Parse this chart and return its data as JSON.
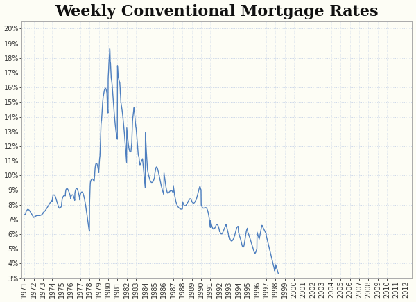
{
  "title": "Weekly Conventional Mortgage Rates",
  "title_fontsize": 16,
  "line_color": "#4E7FBF",
  "line_width": 1.0,
  "background_color": "#FDFDF5",
  "grid_color_h": "#C8D4E8",
  "grid_color_v": "#C8D4E8",
  "grid_linestyle": ":",
  "ylim": [
    3.0,
    20.5
  ],
  "yticks": [
    3,
    4,
    5,
    6,
    7,
    8,
    9,
    10,
    11,
    12,
    13,
    14,
    15,
    16,
    17,
    18,
    19,
    20
  ],
  "tick_fontsize": 7,
  "spine_color": "#AAAAAA",
  "xlim_left": 1970.7,
  "xlim_right": 2012.7,
  "rates": [
    7.33,
    7.33,
    7.33,
    7.33,
    7.33,
    7.33,
    7.33,
    7.44,
    7.46,
    7.53,
    7.55,
    7.56,
    7.59,
    7.61,
    7.64,
    7.65,
    7.66,
    7.67,
    7.68,
    7.69,
    7.68,
    7.68,
    7.67,
    7.67,
    7.66,
    7.65,
    7.64,
    7.62,
    7.61,
    7.59,
    7.58,
    7.56,
    7.54,
    7.52,
    7.5,
    7.48,
    7.46,
    7.44,
    7.42,
    7.4,
    7.37,
    7.35,
    7.33,
    7.3,
    7.28,
    7.26,
    7.23,
    7.21,
    7.19,
    7.17,
    7.15,
    7.13,
    7.13,
    7.14,
    7.15,
    7.16,
    7.17,
    7.17,
    7.18,
    7.19,
    7.2,
    7.21,
    7.21,
    7.22,
    7.23,
    7.24,
    7.24,
    7.25,
    7.25,
    7.25,
    7.26,
    7.26,
    7.26,
    7.26,
    7.26,
    7.26,
    7.26,
    7.26,
    7.26,
    7.26,
    7.26,
    7.26,
    7.26,
    7.26,
    7.26,
    7.26,
    7.26,
    7.27,
    7.27,
    7.27,
    7.28,
    7.28,
    7.29,
    7.29,
    7.3,
    7.31,
    7.32,
    7.33,
    7.34,
    7.35,
    7.36,
    7.37,
    7.38,
    7.4,
    7.46,
    7.47,
    7.49,
    7.5,
    7.51,
    7.52,
    7.53,
    7.54,
    7.55,
    7.56,
    7.57,
    7.58,
    7.6,
    7.62,
    7.64,
    7.66,
    7.68,
    7.7,
    7.72,
    7.73,
    7.74,
    7.76,
    7.78,
    7.8,
    7.82,
    7.84,
    7.86,
    7.88,
    7.9,
    7.92,
    7.94,
    7.96,
    7.98,
    8.0,
    8.02,
    8.04,
    8.06,
    8.08,
    8.1,
    8.12,
    8.14,
    8.16,
    8.18,
    8.2,
    8.22,
    8.24,
    8.26,
    8.26,
    8.26,
    8.25,
    8.24,
    8.23,
    8.38,
    8.48,
    8.55,
    8.6,
    8.63,
    8.65,
    8.66,
    8.67,
    8.67,
    8.67,
    8.67,
    8.67,
    8.66,
    8.65,
    8.63,
    8.61,
    8.58,
    8.55,
    8.51,
    8.47,
    8.43,
    8.39,
    8.35,
    8.31,
    8.27,
    8.23,
    8.19,
    8.15,
    8.11,
    8.07,
    8.03,
    7.99,
    7.95,
    7.91,
    7.87,
    7.84,
    7.82,
    7.8,
    7.78,
    7.77,
    7.76,
    7.76,
    7.76,
    7.77,
    7.78,
    7.79,
    7.8,
    7.82,
    7.84,
    7.86,
    7.88,
    7.9,
    8.1,
    8.2,
    8.3,
    8.38,
    8.43,
    8.47,
    8.5,
    8.52,
    8.55,
    8.57,
    8.59,
    8.61,
    8.62,
    8.63,
    8.64,
    8.64,
    8.64,
    8.64,
    8.63,
    8.62,
    8.6,
    8.75,
    8.89,
    8.97,
    9.02,
    9.05,
    9.07,
    9.08,
    9.09,
    9.1,
    9.1,
    9.1,
    9.09,
    9.08,
    9.06,
    9.04,
    9.02,
    8.99,
    8.96,
    8.93,
    8.9,
    8.87,
    8.84,
    8.81,
    8.77,
    8.73,
    8.69,
    8.64,
    8.59,
    8.53,
    8.47,
    8.4,
    8.55,
    8.58,
    8.62,
    8.64,
    8.65,
    8.66,
    8.67,
    8.68,
    8.68,
    8.68,
    8.67,
    8.66,
    8.64,
    8.62,
    8.59,
    8.56,
    8.52,
    8.48,
    8.44,
    8.39,
    8.34,
    8.3,
    8.78,
    8.86,
    8.92,
    8.97,
    9.01,
    9.04,
    9.07,
    9.09,
    9.1,
    9.11,
    9.11,
    9.1,
    9.09,
    9.07,
    9.05,
    9.02,
    8.99,
    8.95,
    8.91,
    8.87,
    8.82,
    8.77,
    8.72,
    8.66,
    8.6,
    8.53,
    8.46,
    8.39,
    8.32,
    8.65,
    8.69,
    8.73,
    8.76,
    8.79,
    8.81,
    8.83,
    8.85,
    8.86,
    8.87,
    8.87,
    8.87,
    8.86,
    8.85,
    8.83,
    8.81,
    8.79,
    8.76,
    8.72,
    8.68,
    8.64,
    8.59,
    8.54,
    8.49,
    8.43,
    8.37,
    8.31,
    8.24,
    8.17,
    8.1,
    8.03,
    7.95,
    7.87,
    7.79,
    7.71,
    7.63,
    7.54,
    7.45,
    7.36,
    7.27,
    7.18,
    7.09,
    7.0,
    6.9,
    6.8,
    6.7,
    6.62,
    6.54,
    6.46,
    6.38,
    6.31,
    6.26,
    6.2,
    8.04,
    8.45,
    8.97,
    9.2,
    9.45,
    9.55,
    9.58,
    9.63,
    9.66,
    9.69,
    9.71,
    9.73,
    9.74,
    9.75,
    9.76,
    9.76,
    9.76,
    9.75,
    9.74,
    9.73,
    9.71,
    9.69,
    9.67,
    9.64,
    9.61,
    9.58,
    9.64,
    9.83,
    10.05,
    10.25,
    10.4,
    10.52,
    10.62,
    10.69,
    10.74,
    10.78,
    10.81,
    10.82,
    10.83,
    10.82,
    10.81,
    10.79,
    10.76,
    10.72,
    10.68,
    10.63,
    10.57,
    10.51,
    10.44,
    10.36,
    10.28,
    10.19,
    10.38,
    10.53,
    10.78,
    11.01,
    11.14,
    11.24,
    11.32,
    11.58,
    12.01,
    12.34,
    12.71,
    13.09,
    13.46,
    13.6,
    13.72,
    13.77,
    13.93,
    14.14,
    14.33,
    14.55,
    14.73,
    14.99,
    15.08,
    15.23,
    15.38,
    15.49,
    15.49,
    15.56,
    15.65,
    15.71,
    15.77,
    15.82,
    15.86,
    15.89,
    15.92,
    15.94,
    15.95,
    15.95,
    15.94,
    15.92,
    15.89,
    15.85,
    15.8,
    15.74,
    15.67,
    15.65,
    15.24,
    14.95,
    14.76,
    14.59,
    14.42,
    14.26,
    16.63,
    16.82,
    17.06,
    17.38,
    17.64,
    17.83,
    18.01,
    18.18,
    18.45,
    18.63,
    18.51,
    17.88,
    17.52,
    17.66,
    17.38,
    17.0,
    16.81,
    16.64,
    16.57,
    16.5,
    16.4,
    16.3,
    16.2,
    16.04,
    15.87,
    15.71,
    15.55,
    15.38,
    15.2,
    15.03,
    14.87,
    14.7,
    14.53,
    14.37,
    14.21,
    14.06,
    13.91,
    13.77,
    13.64,
    13.51,
    13.39,
    13.28,
    13.17,
    13.07,
    12.97,
    12.88,
    12.8,
    12.72,
    12.65,
    12.58,
    12.52,
    12.47,
    17.48,
    17.33,
    17.1,
    16.88,
    16.67,
    16.66,
    16.65,
    16.58,
    16.52,
    16.47,
    16.43,
    16.38,
    16.34,
    16.31,
    16.12,
    15.94,
    15.61,
    15.5,
    15.23,
    15.01,
    14.93,
    14.87,
    14.8,
    14.72,
    14.63,
    14.54,
    14.44,
    14.34,
    14.23,
    14.12,
    14.01,
    13.89,
    13.77,
    13.64,
    13.51,
    13.38,
    13.25,
    13.11,
    12.97,
    12.82,
    12.67,
    12.51,
    12.35,
    12.19,
    12.03,
    11.86,
    11.7,
    11.53,
    11.37,
    11.21,
    11.05,
    10.89,
    13.24,
    13.1,
    12.96,
    12.82,
    12.69,
    12.56,
    12.44,
    12.32,
    12.2,
    12.1,
    12.01,
    11.93,
    11.86,
    11.8,
    11.75,
    11.7,
    11.66,
    11.63,
    11.61,
    11.6,
    11.6,
    11.6,
    11.6,
    11.61,
    11.74,
    11.88,
    12.02,
    12.14,
    12.24,
    12.64,
    13.09,
    13.44,
    13.71,
    13.86,
    13.96,
    14.06,
    14.16,
    14.27,
    14.39,
    14.51,
    14.62,
    14.62,
    14.47,
    14.32,
    14.18,
    14.04,
    13.9,
    13.76,
    13.63,
    13.5,
    13.38,
    13.26,
    13.24,
    13.11,
    12.97,
    12.83,
    12.68,
    12.53,
    12.38,
    12.23,
    12.07,
    11.91,
    11.75,
    11.58,
    11.41,
    11.37,
    11.34,
    11.3,
    11.27,
    11.14,
    11.01,
    10.95,
    10.82,
    10.76,
    10.72,
    10.75,
    10.78,
    10.81,
    10.84,
    10.87,
    10.9,
    10.93,
    10.96,
    10.99,
    11.02,
    11.05,
    11.08,
    11.11,
    11.14,
    11.0,
    10.87,
    10.73,
    10.6,
    10.47,
    10.34,
    10.21,
    10.08,
    9.95,
    9.81,
    9.68,
    9.55,
    9.41,
    9.28,
    9.15,
    12.92,
    12.67,
    12.43,
    12.19,
    11.96,
    11.74,
    11.52,
    11.31,
    11.11,
    10.92,
    10.73,
    10.56,
    10.39,
    10.3,
    10.22,
    10.17,
    10.12,
    10.07,
    10.02,
    9.97,
    9.92,
    9.87,
    9.82,
    9.77,
    9.73,
    9.69,
    9.66,
    9.63,
    9.61,
    9.59,
    9.57,
    9.55,
    9.53,
    9.52,
    9.52,
    9.52,
    9.52,
    9.52,
    9.53,
    9.53,
    9.54,
    9.55,
    9.57,
    9.59,
    9.62,
    9.64,
    9.67,
    9.71,
    9.74,
    9.78,
    9.82,
    9.86,
    10.07,
    10.14,
    10.23,
    10.3,
    10.37,
    10.43,
    10.48,
    10.52,
    10.55,
    10.57,
    10.58,
    10.58,
    10.57,
    10.55,
    10.53,
    10.5,
    10.46,
    10.42,
    10.37,
    10.32,
    10.27,
    10.22,
    10.16,
    10.1,
    10.04,
    9.98,
    9.92,
    9.86,
    9.8,
    9.73,
    9.67,
    9.61,
    9.55,
    9.49,
    9.44,
    9.38,
    9.33,
    9.28,
    9.23,
    9.18,
    9.13,
    9.09,
    9.04,
    9.0,
    8.96,
    8.92,
    8.88,
    8.84,
    8.81,
    8.77,
    8.74,
    8.71,
    10.17,
    10.08,
    9.98,
    9.89,
    9.79,
    9.7,
    9.61,
    9.52,
    9.44,
    9.36,
    9.28,
    9.21,
    9.14,
    9.08,
    9.02,
    8.97,
    8.92,
    8.88,
    8.85,
    8.82,
    8.8,
    8.79,
    8.79,
    8.79,
    8.8,
    8.81,
    8.82,
    8.83,
    8.85,
    8.86,
    8.88,
    8.89,
    8.91,
    8.92,
    8.93,
    8.95,
    8.96,
    8.97,
    8.97,
    8.97,
    8.97,
    8.97,
    8.96,
    8.96,
    8.95,
    8.94,
    8.92,
    8.91,
    8.89,
    8.87,
    8.84,
    8.82,
    9.31,
    9.22,
    9.13,
    9.04,
    8.95,
    8.86,
    8.78,
    8.7,
    8.62,
    8.55,
    8.48,
    8.41,
    8.35,
    8.3,
    8.24,
    8.19,
    8.15,
    8.11,
    8.07,
    8.03,
    8.0,
    7.97,
    7.95,
    7.92,
    7.9,
    7.88,
    7.86,
    7.85,
    7.83,
    7.82,
    7.8,
    7.79,
    7.78,
    7.77,
    7.76,
    7.75,
    7.74,
    7.73,
    7.72,
    7.72,
    7.71,
    7.71,
    7.7,
    7.7,
    7.7,
    7.7,
    7.7,
    7.7,
    7.7,
    7.71,
    7.71,
    7.72,
    8.21,
    8.17,
    8.13,
    8.09,
    8.06,
    8.03,
    8.01,
    7.99,
    7.97,
    7.96,
    7.95,
    7.94,
    7.93,
    7.93,
    7.93,
    7.93,
    7.94,
    7.94,
    7.95,
    7.96,
    7.98,
    7.99,
    8.01,
    8.03,
    8.05,
    8.07,
    8.1,
    8.12,
    8.15,
    8.17,
    8.2,
    8.22,
    8.25,
    8.27,
    8.3,
    8.32,
    8.34,
    8.36,
    8.38,
    8.39,
    8.4,
    8.41,
    8.41,
    8.41,
    8.4,
    8.39,
    8.38,
    8.36,
    8.34,
    8.31,
    8.28,
    8.24,
    8.21,
    8.19,
    8.17,
    8.15,
    8.14,
    8.13,
    8.12,
    8.11,
    8.11,
    8.11,
    8.11,
    8.11,
    8.12,
    8.13,
    8.14,
    8.16,
    8.17,
    8.19,
    8.21,
    8.23,
    8.25,
    8.27,
    8.3,
    8.32,
    8.35,
    8.39,
    8.43,
    8.47,
    8.51,
    8.56,
    8.6,
    8.65,
    8.7,
    8.75,
    8.8,
    8.85,
    8.9,
    8.95,
    8.99,
    9.04,
    9.09,
    9.13,
    9.17,
    9.2,
    9.23,
    9.25,
    9.21,
    9.18,
    9.14,
    9.1,
    9.05,
    9.0,
    8.0,
    7.96,
    7.93,
    7.9,
    7.87,
    7.84,
    7.82,
    7.8,
    7.79,
    7.78,
    7.77,
    7.77,
    7.77,
    7.77,
    7.77,
    7.77,
    7.77,
    7.78,
    7.78,
    7.79,
    7.79,
    7.8,
    7.8,
    7.8,
    7.8,
    7.8,
    7.8,
    7.8,
    7.79,
    7.78,
    7.77,
    7.75,
    7.73,
    7.7,
    7.67,
    7.64,
    7.6,
    7.56,
    7.51,
    7.46,
    7.4,
    7.34,
    7.27,
    7.2,
    7.12,
    7.04,
    6.95,
    6.86,
    6.77,
    6.67,
    6.57,
    6.46,
    6.94,
    6.88,
    6.82,
    6.76,
    6.71,
    6.66,
    6.61,
    6.57,
    6.53,
    6.49,
    6.46,
    6.43,
    6.41,
    6.39,
    6.37,
    6.36,
    6.35,
    6.35,
    6.35,
    6.35,
    6.36,
    6.37,
    6.38,
    6.4,
    6.42,
    6.44,
    6.47,
    6.49,
    6.52,
    6.55,
    6.58,
    6.61,
    6.63,
    6.64,
    6.65,
    6.66,
    6.66,
    6.66,
    6.65,
    6.64,
    6.62,
    6.6,
    6.58,
    6.55,
    6.52,
    6.48,
    6.44,
    6.4,
    6.35,
    6.3,
    6.24,
    6.18,
    6.2,
    6.16,
    6.12,
    6.09,
    6.06,
    6.04,
    6.03,
    6.02,
    6.01,
    6.01,
    6.01,
    6.02,
    6.03,
    6.04,
    6.06,
    6.08,
    6.1,
    6.13,
    6.16,
    6.19,
    6.21,
    6.24,
    6.27,
    6.3,
    6.33,
    6.36,
    6.4,
    6.43,
    6.47,
    6.5,
    6.53,
    6.57,
    6.6,
    6.63,
    6.67,
    6.63,
    6.59,
    6.55,
    6.5,
    6.46,
    6.41,
    6.37,
    6.32,
    6.27,
    6.22,
    6.17,
    6.12,
    6.06,
    6.0,
    5.94,
    5.87,
    5.8,
    5.94,
    5.88,
    5.82,
    5.77,
    5.72,
    5.68,
    5.64,
    5.61,
    5.59,
    5.57,
    5.55,
    5.54,
    5.54,
    5.53,
    5.53,
    5.53,
    5.54,
    5.55,
    5.56,
    5.57,
    5.59,
    5.61,
    5.63,
    5.66,
    5.68,
    5.71,
    5.74,
    5.77,
    5.8,
    5.84,
    5.88,
    5.92,
    5.96,
    6.01,
    6.05,
    6.1,
    6.14,
    6.19,
    6.24,
    6.29,
    6.34,
    6.38,
    6.42,
    6.44,
    6.47,
    6.49,
    6.51,
    6.52,
    6.53,
    6.53,
    6.53,
    6.53,
    6.14,
    6.1,
    6.06,
    6.02,
    5.98,
    5.94,
    5.9,
    5.86,
    5.82,
    5.78,
    5.74,
    5.7,
    5.65,
    5.6,
    5.55,
    5.5,
    5.45,
    5.4,
    5.35,
    5.3,
    5.25,
    5.21,
    5.18,
    5.15,
    5.13,
    5.12,
    5.12,
    5.12,
    5.13,
    5.15,
    5.18,
    5.22,
    5.28,
    5.34,
    5.42,
    5.5,
    5.59,
    5.67,
    5.75,
    5.83,
    5.91,
    5.99,
    6.07,
    6.14,
    6.2,
    6.25,
    6.29,
    6.33,
    6.36,
    6.38,
    6.4,
    6.41,
    6.14,
    6.11,
    6.08,
    6.05,
    6.01,
    5.98,
    5.95,
    5.91,
    5.88,
    5.84,
    5.81,
    5.77,
    5.73,
    5.69,
    5.65,
    5.61,
    5.57,
    5.53,
    5.49,
    5.45,
    5.41,
    5.37,
    5.33,
    5.29,
    5.25,
    5.21,
    5.17,
    5.13,
    5.09,
    5.05,
    5.01,
    4.97,
    4.93,
    4.89,
    4.85,
    4.81,
    4.77,
    4.75,
    4.73,
    4.71,
    4.7,
    4.7,
    4.71,
    4.73,
    4.75,
    4.78,
    4.81,
    4.85,
    4.89,
    4.93,
    4.97,
    5.01,
    6.14,
    6.1,
    6.06,
    6.02,
    5.98,
    5.94,
    5.9,
    5.86,
    5.82,
    5.78,
    5.74,
    5.7,
    5.66,
    5.72,
    5.78,
    5.84,
    5.9,
    5.97,
    6.03,
    6.1,
    6.17,
    6.24,
    6.31,
    6.37,
    6.43,
    6.49,
    6.55,
    6.6,
    6.59,
    6.57,
    6.54,
    6.52,
    6.49,
    6.47,
    6.44,
    6.42,
    6.39,
    6.37,
    6.34,
    6.32,
    6.29,
    6.27,
    6.24,
    6.22,
    6.19,
    6.17,
    6.14,
    6.12,
    6.09,
    6.07,
    6.04,
    6.02,
    5.87,
    5.82,
    5.77,
    5.72,
    5.67,
    5.62,
    5.57,
    5.52,
    5.47,
    5.42,
    5.37,
    5.32,
    5.27,
    5.22,
    5.17,
    5.12,
    5.07,
    5.02,
    4.97,
    4.92,
    4.87,
    4.82,
    4.77,
    4.72,
    4.67,
    4.62,
    4.57,
    4.52,
    4.47,
    4.42,
    4.37,
    4.32,
    4.27,
    4.22,
    4.17,
    4.12,
    4.07,
    4.02,
    3.97,
    3.92,
    3.87,
    3.82,
    3.77,
    3.72,
    3.67,
    3.62,
    3.55,
    3.49,
    3.6,
    3.7,
    3.65,
    3.66,
    3.92,
    3.87,
    3.83,
    3.79,
    3.75,
    3.71,
    3.66,
    3.62,
    3.58,
    3.54,
    3.5,
    3.46,
    3.42,
    3.38,
    3.34,
    3.31
  ]
}
